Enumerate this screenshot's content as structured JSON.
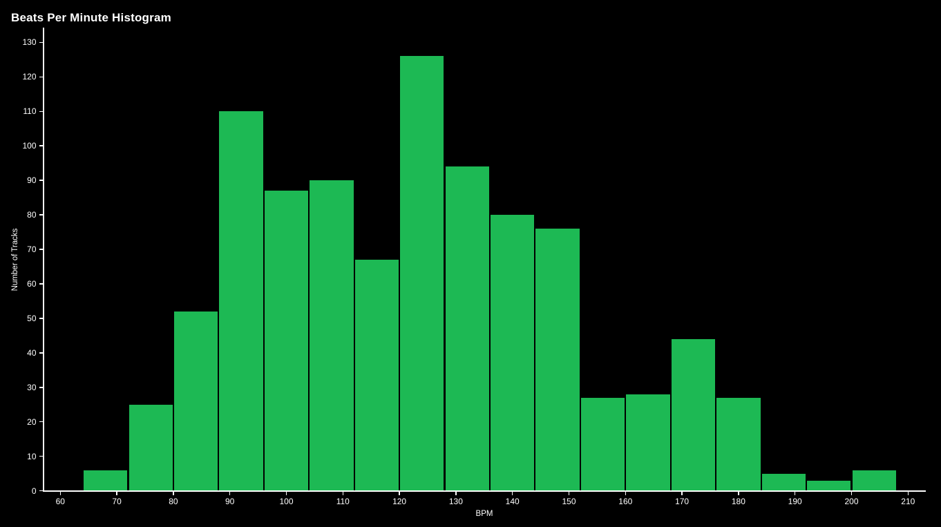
{
  "title": "Beats Per Minute Histogram",
  "chart_data": {
    "type": "bar",
    "subtype": "histogram",
    "title": "Beats Per Minute Histogram",
    "xlabel": "BPM",
    "ylabel": "Number of Tracks",
    "bin_edges": [
      64,
      72,
      80,
      88,
      96,
      104,
      112,
      120,
      128,
      136,
      144,
      152,
      160,
      168,
      176,
      184,
      192,
      200,
      208
    ],
    "values": [
      6,
      25,
      52,
      110,
      87,
      90,
      67,
      126,
      94,
      80,
      76,
      27,
      28,
      44,
      27,
      5,
      3,
      6
    ],
    "x_ticks": [
      60,
      70,
      80,
      90,
      100,
      110,
      120,
      130,
      140,
      150,
      160,
      170,
      180,
      190,
      200,
      210
    ],
    "y_ticks": [
      0,
      10,
      20,
      30,
      40,
      50,
      60,
      70,
      80,
      90,
      100,
      110,
      120,
      130
    ],
    "xlim": [
      57,
      213
    ],
    "ylim": [
      0,
      134
    ],
    "grid": false,
    "legend": "none",
    "bar_color": "#1db954",
    "bar_edge_color": "#000000",
    "background_color": "#000000",
    "axis_color": "#ffffff",
    "text_color": "#ffffff"
  }
}
